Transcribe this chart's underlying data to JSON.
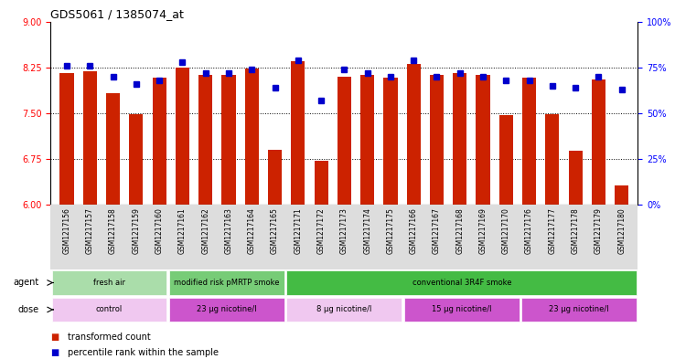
{
  "title": "GDS5061 / 1385074_at",
  "samples": [
    "GSM1217156",
    "GSM1217157",
    "GSM1217158",
    "GSM1217159",
    "GSM1217160",
    "GSM1217161",
    "GSM1217162",
    "GSM1217163",
    "GSM1217164",
    "GSM1217165",
    "GSM1217171",
    "GSM1217172",
    "GSM1217173",
    "GSM1217174",
    "GSM1217175",
    "GSM1217166",
    "GSM1217167",
    "GSM1217168",
    "GSM1217169",
    "GSM1217170",
    "GSM1217176",
    "GSM1217177",
    "GSM1217178",
    "GSM1217179",
    "GSM1217180"
  ],
  "bar_values": [
    8.15,
    8.18,
    7.83,
    7.48,
    8.08,
    8.25,
    8.12,
    8.12,
    8.23,
    6.9,
    8.35,
    6.72,
    8.1,
    8.12,
    8.08,
    8.3,
    8.12,
    8.15,
    8.12,
    7.47,
    8.08,
    7.48,
    6.88,
    8.05,
    6.32
  ],
  "percentile_values": [
    76,
    76,
    70,
    66,
    68,
    78,
    72,
    72,
    74,
    64,
    79,
    57,
    74,
    72,
    70,
    79,
    70,
    72,
    70,
    68,
    68,
    65,
    64,
    70,
    63
  ],
  "ylim_left": [
    6,
    9
  ],
  "ylim_right": [
    0,
    100
  ],
  "yticks_left": [
    6,
    6.75,
    7.5,
    8.25,
    9
  ],
  "yticks_right": [
    0,
    25,
    50,
    75,
    100
  ],
  "bar_color": "#cc2200",
  "dot_color": "#0000cc",
  "grid_values": [
    6.75,
    7.5,
    8.25
  ],
  "agent_groups": [
    {
      "label": "fresh air",
      "start": 0,
      "end": 5,
      "color": "#aaddaa"
    },
    {
      "label": "modified risk pMRTP smoke",
      "start": 5,
      "end": 10,
      "color": "#77cc77"
    },
    {
      "label": "conventional 3R4F smoke",
      "start": 10,
      "end": 25,
      "color": "#44bb44"
    }
  ],
  "dose_groups": [
    {
      "label": "control",
      "start": 0,
      "end": 5,
      "color": "#f0c8f0"
    },
    {
      "label": "23 μg nicotine/l",
      "start": 5,
      "end": 10,
      "color": "#cc55cc"
    },
    {
      "label": "8 μg nicotine/l",
      "start": 10,
      "end": 15,
      "color": "#f0c8f0"
    },
    {
      "label": "15 μg nicotine/l",
      "start": 15,
      "end": 20,
      "color": "#cc55cc"
    },
    {
      "label": "23 μg nicotine/l",
      "start": 20,
      "end": 25,
      "color": "#cc55cc"
    }
  ],
  "legend_items": [
    {
      "label": "transformed count",
      "color": "#cc2200"
    },
    {
      "label": "percentile rank within the sample",
      "color": "#0000cc"
    }
  ],
  "agent_label": "agent",
  "dose_label": "dose",
  "xtick_bg_color": "#dddddd"
}
